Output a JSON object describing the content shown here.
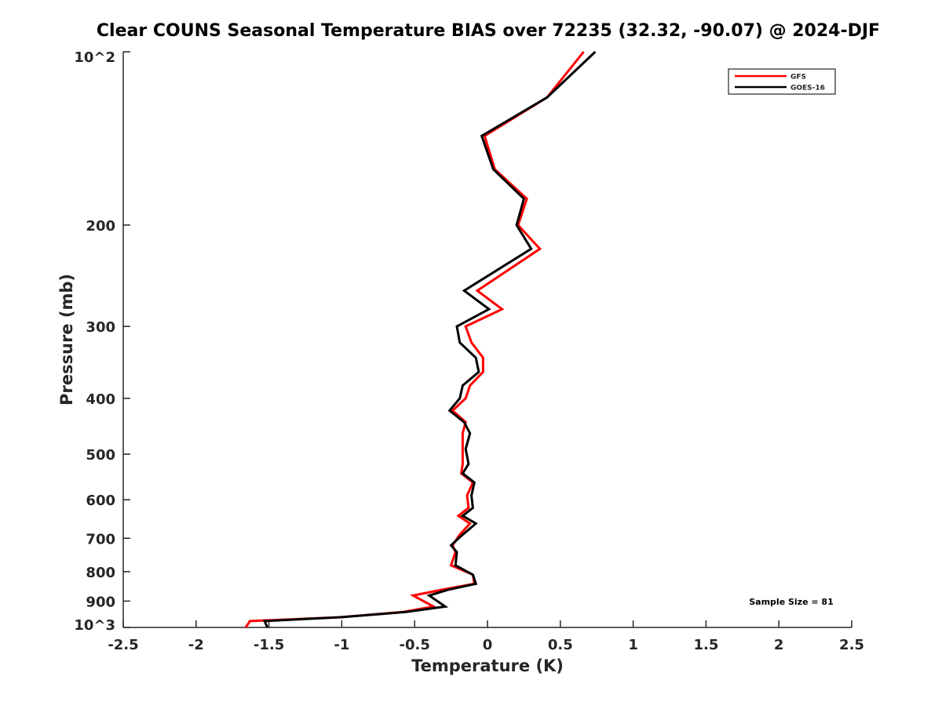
{
  "chart_data": {
    "type": "line",
    "title": "Clear COUNS Seasonal Temperature BIAS over 72235 (32.32, -90.07) @ 2024-DJF",
    "xlabel": "Temperature (K)",
    "ylabel": "Pressure (mb)",
    "xlim": [
      -2.5,
      2.5
    ],
    "ylim": [
      100,
      1000
    ],
    "yscale": "log",
    "y_reversed": true,
    "grid": false,
    "xticks": [
      -2.5,
      -2,
      -1.5,
      -1,
      -0.5,
      0,
      0.5,
      1,
      1.5,
      2,
      2.5
    ],
    "xtick_labels": [
      "-2.5",
      "-2",
      "-1.5",
      "-1",
      "-0.5",
      "0",
      "0.5",
      "1",
      "1.5",
      "2",
      "2.5"
    ],
    "yticks": [
      100,
      200,
      300,
      400,
      500,
      600,
      700,
      800,
      900,
      1000
    ],
    "ytick_labels": [
      "10^2",
      "200",
      "300",
      "400",
      "500",
      "600",
      "700",
      "800",
      "900",
      "10^3"
    ],
    "legend_placement": "top-right",
    "pressure_levels": [
      100,
      120,
      140,
      160,
      180,
      200,
      220,
      260,
      280,
      300,
      320,
      340,
      360,
      380,
      400,
      420,
      440,
      460,
      490,
      520,
      540,
      560,
      590,
      620,
      640,
      660,
      690,
      720,
      740,
      780,
      810,
      840,
      860,
      880,
      920,
      940,
      960,
      975,
      1000
    ],
    "series": [
      {
        "name": "GFS",
        "color": "#ff0000",
        "values": [
          0.66,
          0.41,
          -0.02,
          0.05,
          0.27,
          0.21,
          0.36,
          -0.07,
          0.1,
          -0.15,
          -0.11,
          -0.03,
          -0.03,
          -0.12,
          -0.15,
          -0.24,
          -0.15,
          -0.17,
          -0.17,
          -0.17,
          -0.18,
          -0.1,
          -0.14,
          -0.13,
          -0.2,
          -0.12,
          -0.19,
          -0.24,
          -0.22,
          -0.25,
          -0.1,
          -0.09,
          -0.31,
          -0.51,
          -0.37,
          -0.58,
          -1.01,
          -1.63,
          -1.66
        ]
      },
      {
        "name": "GOES-16",
        "color": "#000000",
        "values": [
          0.74,
          0.41,
          -0.04,
          0.04,
          0.25,
          0.2,
          0.3,
          -0.16,
          0.01,
          -0.21,
          -0.19,
          -0.08,
          -0.06,
          -0.17,
          -0.19,
          -0.26,
          -0.16,
          -0.12,
          -0.15,
          -0.13,
          -0.17,
          -0.09,
          -0.11,
          -0.1,
          -0.17,
          -0.08,
          -0.17,
          -0.25,
          -0.21,
          -0.22,
          -0.1,
          -0.08,
          -0.27,
          -0.4,
          -0.29,
          -0.56,
          -1.01,
          -1.53,
          -1.51
        ]
      }
    ],
    "annotation": "Sample Size = 81"
  }
}
